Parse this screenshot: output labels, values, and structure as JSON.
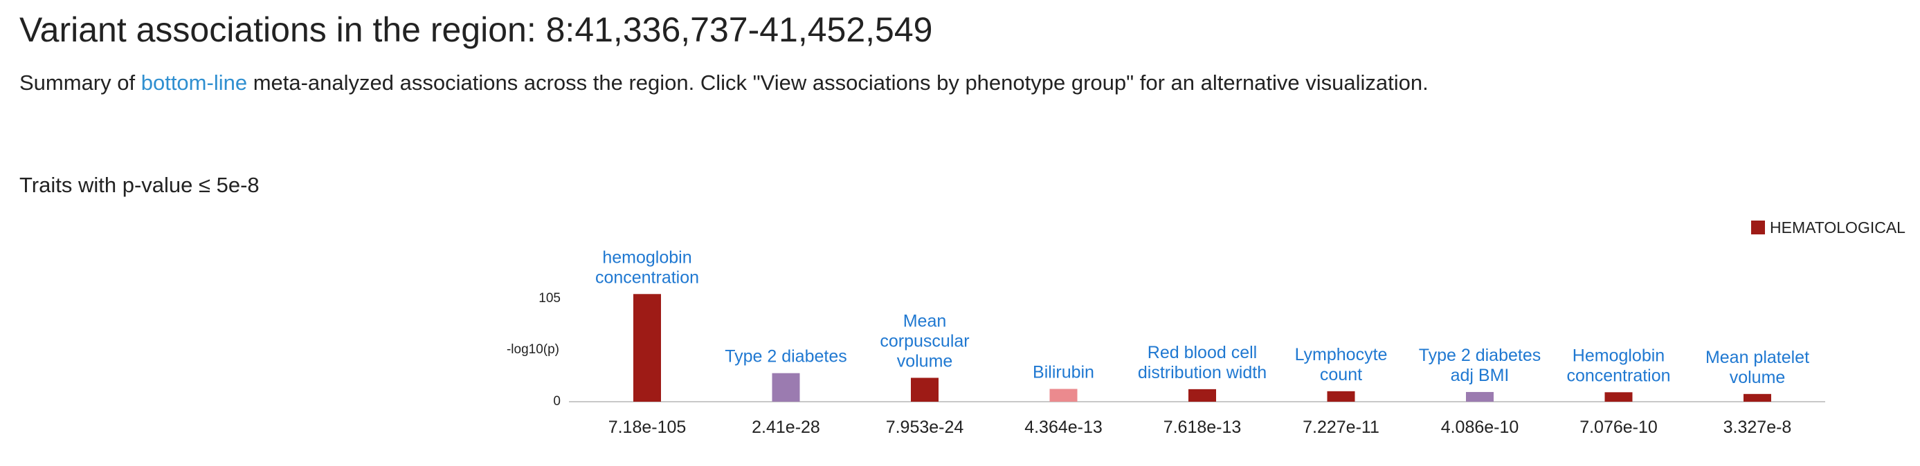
{
  "header": {
    "title": "Variant associations in the region: 8:41,336,737-41,452,549",
    "summary_prefix": "Summary of ",
    "summary_link": "bottom-line",
    "summary_suffix": " meta-analyzed associations across the region. Click \"View associations by phenotype group\" for an alternative visualization.",
    "traits_heading": "Traits with p-value ≤ 5e-8"
  },
  "colors": {
    "hematological": "#9e1b16",
    "diabetes": "#9b7bb0",
    "bilirubin": "#eb8a8e",
    "label_link": "#1f78d1"
  },
  "chart_data": {
    "type": "bar",
    "ylabel": "-log10(p)",
    "ylim": [
      0,
      105
    ],
    "yticks": [
      "0",
      "105"
    ],
    "legend": [
      {
        "name": "HEMATOLOGICAL",
        "color": "#9e1b16"
      }
    ],
    "legend_position": "top-right",
    "grid": false,
    "bars": [
      {
        "label": [
          "hemoglobin",
          "concentration"
        ],
        "pvalue": "7.18e-105",
        "value": 104.14,
        "color": "#9e1b16"
      },
      {
        "label": [
          "Type 2 diabetes"
        ],
        "pvalue": "2.41e-28",
        "value": 27.62,
        "color": "#9b7bb0"
      },
      {
        "label": [
          "Mean",
          "corpuscular",
          "volume"
        ],
        "pvalue": "7.953e-24",
        "value": 23.1,
        "color": "#9e1b16"
      },
      {
        "label": [
          "Bilirubin"
        ],
        "pvalue": "4.364e-13",
        "value": 12.36,
        "color": "#eb8a8e"
      },
      {
        "label": [
          "Red blood cell",
          "distribution width"
        ],
        "pvalue": "7.618e-13",
        "value": 12.12,
        "color": "#9e1b16"
      },
      {
        "label": [
          "Lymphocyte",
          "count"
        ],
        "pvalue": "7.227e-11",
        "value": 10.14,
        "color": "#9e1b16"
      },
      {
        "label": [
          "Type 2 diabetes",
          "adj BMI"
        ],
        "pvalue": "4.086e-10",
        "value": 9.39,
        "color": "#9b7bb0"
      },
      {
        "label": [
          "Hemoglobin",
          "concentration"
        ],
        "pvalue": "7.076e-10",
        "value": 9.15,
        "color": "#9e1b16"
      },
      {
        "label": [
          "Mean platelet",
          "volume"
        ],
        "pvalue": "3.327e-8",
        "value": 7.48,
        "color": "#9e1b16"
      }
    ]
  }
}
